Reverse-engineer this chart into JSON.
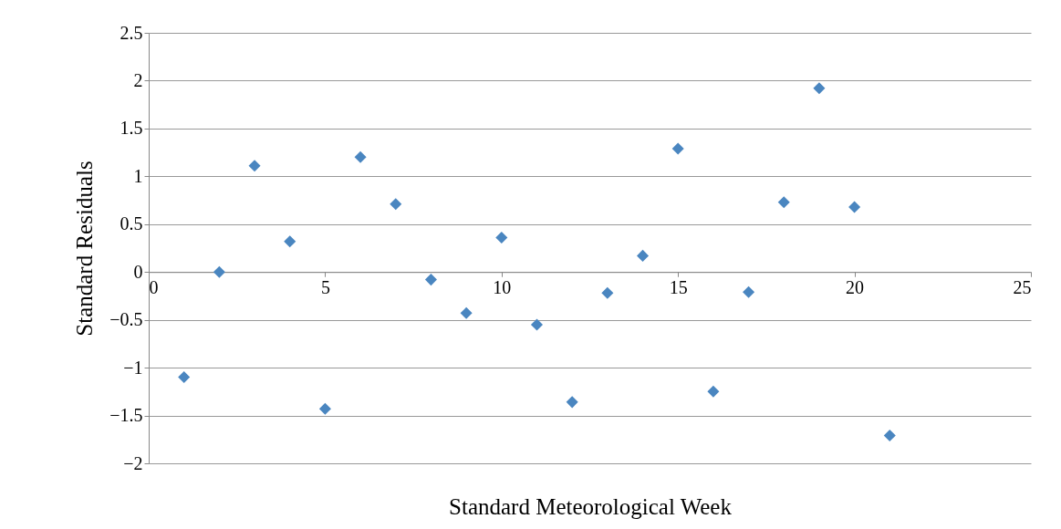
{
  "chart_data": {
    "type": "scatter",
    "xlabel": "Standard Meteorological Week",
    "ylabel": "Standard  Residuals",
    "x": [
      1,
      2,
      3,
      4,
      5,
      6,
      7,
      8,
      9,
      10,
      11,
      12,
      13,
      14,
      15,
      16,
      17,
      18,
      19,
      20,
      21
    ],
    "series": [
      {
        "color": "#4a86c0",
        "values": [
          -1.1,
          0.0,
          1.11,
          0.32,
          -1.43,
          1.2,
          0.71,
          -0.08,
          -0.43,
          0.36,
          -0.55,
          -1.36,
          -0.22,
          0.17,
          1.29,
          -1.25,
          -0.21,
          0.73,
          1.92,
          0.68,
          -1.71
        ]
      }
    ],
    "xlim": [
      0,
      25
    ],
    "xticks": [
      0,
      5,
      10,
      15,
      20,
      25
    ],
    "ylim": [
      -2,
      2.5
    ],
    "yticks": [
      -2,
      -1.5,
      -1,
      -0.5,
      0,
      0.5,
      1,
      1.5,
      2,
      2.5
    ],
    "grid": "y",
    "marker": "diamond"
  }
}
